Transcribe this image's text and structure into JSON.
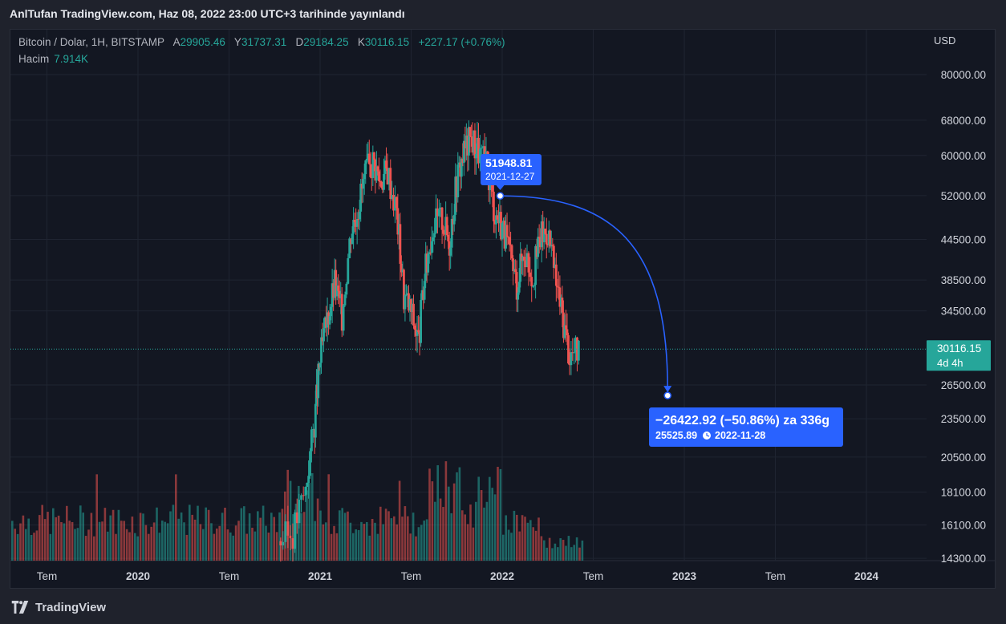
{
  "header": {
    "title": "AnlTufan TradingView.com, Haz 08, 2022 23:00 UTC+3 tarihinde yayınlandı"
  },
  "legend": {
    "symbol": "Bitcoin / Dolar, 1H, BITSTAMP",
    "open_label": "A",
    "open_value": "29905.46",
    "high_label": "Y",
    "high_value": "31737.31",
    "low_label": "D",
    "low_value": "29184.25",
    "close_label": "K",
    "close_value": "30116.15",
    "change": "+227.17 (+0.76%)",
    "volume_label": "Hacim",
    "volume_value": "7.914K"
  },
  "currency": "USD",
  "price_tag": {
    "price": "30116.15",
    "countdown": "4d 4h"
  },
  "annotation": {
    "start_price": "51948.81",
    "start_date": "2021-12-27",
    "measure": "−26422.92 (−50.86%) za 336g",
    "end_price": "25525.89",
    "end_date": "2022-11-28"
  },
  "colors": {
    "up": "#26a69a",
    "down": "#ef5350",
    "accent": "#2962ff",
    "background": "#131722"
  },
  "footer": {
    "brand": "TradingView",
    "logo_icon": "tradingview-logo-icon"
  },
  "chart_data": {
    "type": "candlestick",
    "scale": "log",
    "y_ticks": [
      80000,
      68000,
      60000,
      52000,
      44500,
      38500,
      34500,
      26500,
      23500,
      20500,
      18100,
      16100,
      14300
    ],
    "y_tick_labels": [
      "80000.00",
      "68000.00",
      "60000.00",
      "52000.00",
      "44500.00",
      "38500.00",
      "34500.00",
      "26500.00",
      "23500.00",
      "20500.00",
      "18100.00",
      "16100.00",
      "14300.00"
    ],
    "x_ticks": [
      {
        "label": "Tem",
        "date": "2019-07"
      },
      {
        "label": "2020",
        "date": "2020-01"
      },
      {
        "label": "Tem",
        "date": "2020-07"
      },
      {
        "label": "2021",
        "date": "2021-01"
      },
      {
        "label": "Tem",
        "date": "2021-07"
      },
      {
        "label": "2022",
        "date": "2022-01"
      },
      {
        "label": "Tem",
        "date": "2022-07"
      },
      {
        "label": "2023",
        "date": "2023-01"
      },
      {
        "label": "Tem",
        "date": "2023-07"
      },
      {
        "label": "2024",
        "date": "2024-01"
      }
    ],
    "last_price": 30116.15,
    "price_series": [
      [
        2020.77,
        15200
      ],
      [
        2020.85,
        15700
      ],
      [
        2020.92,
        18300
      ],
      [
        2020.97,
        23300
      ],
      [
        2021.0,
        29000
      ],
      [
        2021.04,
        33500
      ],
      [
        2021.08,
        38000
      ],
      [
        2021.12,
        34000
      ],
      [
        2021.17,
        46000
      ],
      [
        2021.21,
        50500
      ],
      [
        2021.25,
        56000
      ],
      [
        2021.29,
        59000
      ],
      [
        2021.33,
        55000
      ],
      [
        2021.37,
        57000
      ],
      [
        2021.42,
        49000
      ],
      [
        2021.46,
        36500
      ],
      [
        2021.5,
        34500
      ],
      [
        2021.54,
        31000
      ],
      [
        2021.58,
        40000
      ],
      [
        2021.62,
        47000
      ],
      [
        2021.67,
        48000
      ],
      [
        2021.71,
        44000
      ],
      [
        2021.75,
        55000
      ],
      [
        2021.79,
        61000
      ],
      [
        2021.83,
        64000
      ],
      [
        2021.87,
        61000
      ],
      [
        2021.92,
        57000
      ],
      [
        2021.96,
        49000
      ],
      [
        2022.0,
        47000
      ],
      [
        2022.04,
        42000
      ],
      [
        2022.08,
        38000
      ],
      [
        2022.12,
        43000
      ],
      [
        2022.17,
        39000
      ],
      [
        2022.21,
        45000
      ],
      [
        2022.25,
        46000
      ],
      [
        2022.29,
        39000
      ],
      [
        2022.33,
        34000
      ],
      [
        2022.37,
        29500
      ],
      [
        2022.42,
        30116
      ]
    ],
    "projection": {
      "from": {
        "date": "2021-12-27",
        "price": 51948.81
      },
      "to": {
        "date": "2022-11-28",
        "price": 25525.89
      },
      "change": -26422.92,
      "change_pct": -50.86,
      "days": 336
    }
  }
}
